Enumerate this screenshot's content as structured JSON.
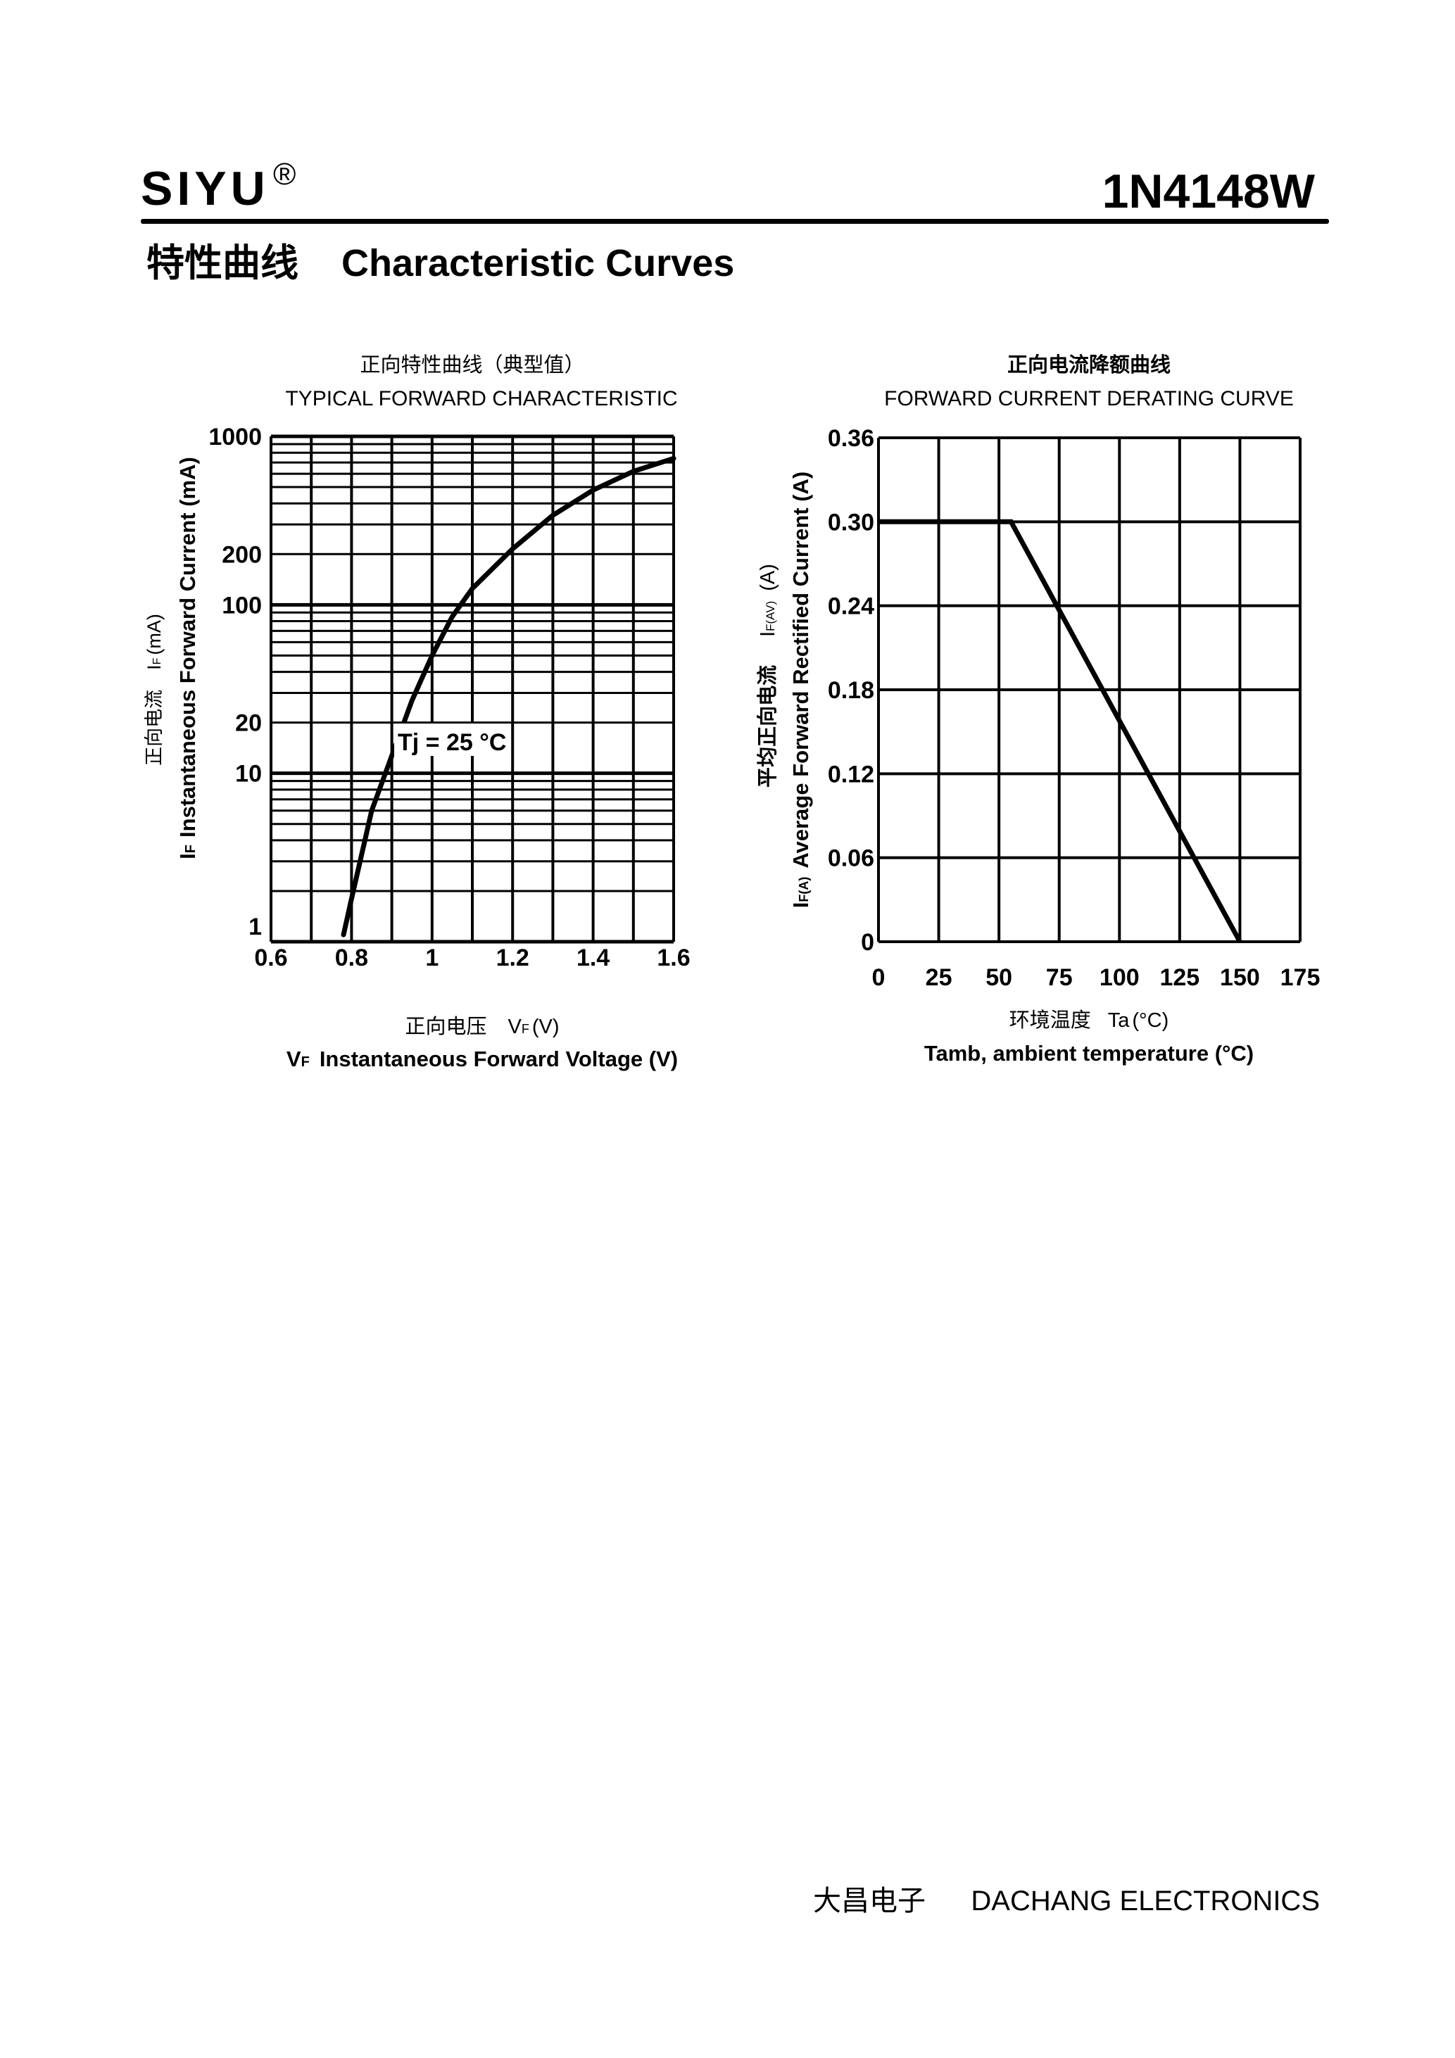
{
  "header": {
    "brand": "SIYU",
    "registered_mark": "®",
    "part_number": "1N4148W",
    "section_title_cn": "特性曲线",
    "section_title_en": "Characteristic Curves"
  },
  "footer": {
    "company_cn": "大昌电子",
    "company_en": "DACHANG ELECTRONICS"
  },
  "colors": {
    "ink": "#000000",
    "background": "#ffffff"
  },
  "chart_data": [
    {
      "type": "line",
      "title_cn": "正向特性曲线（典型值）",
      "title": "TYPICAL FORWARD CHARACTERISTIC",
      "xlabel_cn": "正向电压",
      "xlabel_sym": "V",
      "xlabel_sym_sub": "F",
      "xlabel_unit": "(V)",
      "xlabel_sym2": "V",
      "xlabel_sym2_sub": "F",
      "xlabel": "Instantaneous Forward Voltage (V)",
      "ylabel_cn": "正向电流",
      "ylabel_sym": "I",
      "ylabel_sym_sub": "F",
      "ylabel_unit": "(mA)",
      "ylabel_sym2": "I",
      "ylabel_sym2_sub": "F",
      "ylabel": "Instantaneous Forward Current (mA)",
      "xlim": [
        0.6,
        1.6
      ],
      "ylim": [
        1,
        1000
      ],
      "yscale": "log",
      "grid": true,
      "x_ticks": [
        "0.6",
        "0.8",
        "1",
        "1.2",
        "1.4",
        "1.6"
      ],
      "x_tick_values": [
        0.6,
        0.8,
        1.0,
        1.2,
        1.4,
        1.6
      ],
      "y_ticks": [
        "1",
        "10",
        "20",
        "100",
        "200",
        "1000"
      ],
      "y_tick_values": [
        1,
        10,
        20,
        100,
        200,
        1000
      ],
      "annotation": "Tj = 25 °C",
      "series": [
        {
          "x": [
            0.78,
            0.8,
            0.85,
            0.9,
            0.95,
            1.0,
            1.05,
            1.1,
            1.2,
            1.3,
            1.4,
            1.5,
            1.6
          ],
          "y": [
            1.1,
            1.8,
            6,
            12.7,
            27,
            50,
            85,
            125,
            215,
            340,
            480,
            620,
            740
          ]
        }
      ]
    },
    {
      "type": "line",
      "title_cn": "正向电流降额曲线",
      "title": "FORWARD CURRENT DERATING CURVE",
      "xlabel_cn": "环境温度",
      "xlabel_sym": "Ta",
      "xlabel_unit": "(°C)",
      "xlabel": "Tamb, ambient temperature (°C)",
      "ylabel_cn": "平均正向电流",
      "ylabel_sym": "I",
      "ylabel_sym_sub": "F(AV)",
      "ylabel_unit": "(A)",
      "ylabel_sym2": "I",
      "ylabel_sym2_sub": "F(A)",
      "ylabel": "Average Forward Rectified Current (A)",
      "xlim": [
        0,
        175
      ],
      "ylim": [
        0,
        0.36
      ],
      "grid": true,
      "x_ticks": [
        "0",
        "25",
        "50",
        "75",
        "100",
        "125",
        "150",
        "175"
      ],
      "x_tick_values": [
        0,
        25,
        50,
        75,
        100,
        125,
        150,
        175
      ],
      "y_ticks": [
        "0",
        "0.06",
        "0.12",
        "0.18",
        "0.24",
        "0.30",
        "0.36"
      ],
      "y_tick_values": [
        0,
        0.06,
        0.12,
        0.18,
        0.24,
        0.3,
        0.36
      ],
      "series": [
        {
          "x": [
            0,
            55,
            150
          ],
          "y": [
            0.3,
            0.3,
            0
          ]
        }
      ]
    }
  ]
}
